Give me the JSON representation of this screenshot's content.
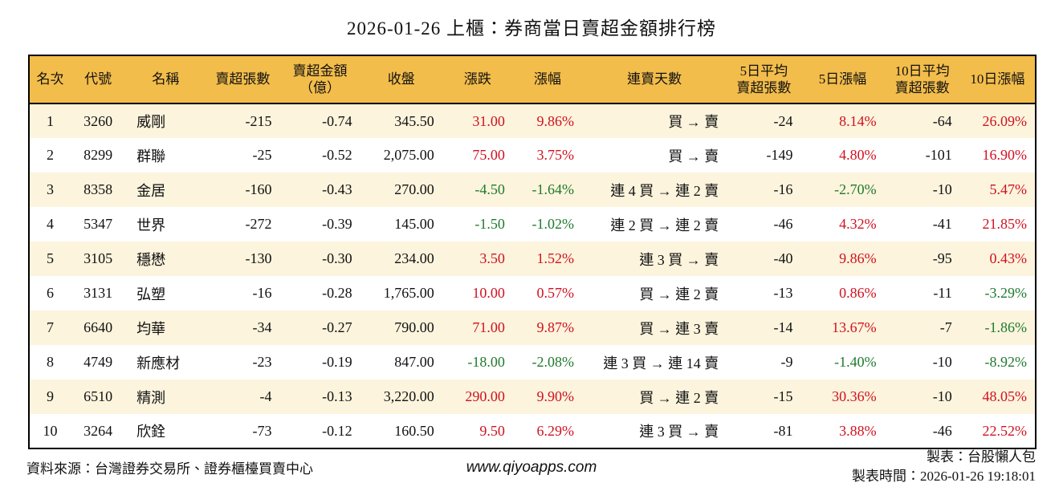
{
  "title": "2026-01-26 上櫃：券商當日賣超金額排行榜",
  "colors": {
    "header_bg": "#F3BD4B",
    "stripe_bg": "#FCF4DD",
    "up_red": "#D01120",
    "down_green": "#1F7A2D",
    "border": "#000000"
  },
  "table": {
    "headers": [
      "名次",
      "代號",
      "名稱",
      "賣超張數",
      "賣超金額\n（億）",
      "收盤",
      "漲跌",
      "漲幅",
      "連賣天數",
      "5日平均\n賣超張數",
      "5日漲幅",
      "10日平均\n賣超張數",
      "10日漲幅"
    ],
    "rows": [
      {
        "cells": [
          "1",
          "3260",
          "威剛",
          "-215",
          "-0.74",
          "345.50",
          "31.00",
          "9.86%",
          "買 → 賣",
          "-24",
          "8.14%",
          "-64",
          "26.09%"
        ],
        "tones": [
          "k",
          "k",
          "k",
          "k",
          "k",
          "k",
          "r",
          "r",
          "k",
          "k",
          "r",
          "k",
          "r"
        ]
      },
      {
        "cells": [
          "2",
          "8299",
          "群聯",
          "-25",
          "-0.52",
          "2,075.00",
          "75.00",
          "3.75%",
          "買 → 賣",
          "-149",
          "4.80%",
          "-101",
          "16.90%"
        ],
        "tones": [
          "k",
          "k",
          "k",
          "k",
          "k",
          "k",
          "r",
          "r",
          "k",
          "k",
          "r",
          "k",
          "r"
        ]
      },
      {
        "cells": [
          "3",
          "8358",
          "金居",
          "-160",
          "-0.43",
          "270.00",
          "-4.50",
          "-1.64%",
          "連 4 買 → 連 2 賣",
          "-16",
          "-2.70%",
          "-10",
          "5.47%"
        ],
        "tones": [
          "k",
          "k",
          "k",
          "k",
          "k",
          "k",
          "g",
          "g",
          "k",
          "k",
          "g",
          "k",
          "r"
        ]
      },
      {
        "cells": [
          "4",
          "5347",
          "世界",
          "-272",
          "-0.39",
          "145.00",
          "-1.50",
          "-1.02%",
          "連 2 買 → 連 2 賣",
          "-46",
          "4.32%",
          "-41",
          "21.85%"
        ],
        "tones": [
          "k",
          "k",
          "k",
          "k",
          "k",
          "k",
          "g",
          "g",
          "k",
          "k",
          "r",
          "k",
          "r"
        ]
      },
      {
        "cells": [
          "5",
          "3105",
          "穩懋",
          "-130",
          "-0.30",
          "234.00",
          "3.50",
          "1.52%",
          "連 3 買 → 賣",
          "-40",
          "9.86%",
          "-95",
          "0.43%"
        ],
        "tones": [
          "k",
          "k",
          "k",
          "k",
          "k",
          "k",
          "r",
          "r",
          "k",
          "k",
          "r",
          "k",
          "r"
        ]
      },
      {
        "cells": [
          "6",
          "3131",
          "弘塑",
          "-16",
          "-0.28",
          "1,765.00",
          "10.00",
          "0.57%",
          "買 → 連 2 賣",
          "-13",
          "0.86%",
          "-11",
          "-3.29%"
        ],
        "tones": [
          "k",
          "k",
          "k",
          "k",
          "k",
          "k",
          "r",
          "r",
          "k",
          "k",
          "r",
          "k",
          "g"
        ]
      },
      {
        "cells": [
          "7",
          "6640",
          "均華",
          "-34",
          "-0.27",
          "790.00",
          "71.00",
          "9.87%",
          "買 → 連 3 賣",
          "-14",
          "13.67%",
          "-7",
          "-1.86%"
        ],
        "tones": [
          "k",
          "k",
          "k",
          "k",
          "k",
          "k",
          "r",
          "r",
          "k",
          "k",
          "r",
          "k",
          "g"
        ]
      },
      {
        "cells": [
          "8",
          "4749",
          "新應材",
          "-23",
          "-0.19",
          "847.00",
          "-18.00",
          "-2.08%",
          "連 3 買 → 連 14 賣",
          "-9",
          "-1.40%",
          "-10",
          "-8.92%"
        ],
        "tones": [
          "k",
          "k",
          "k",
          "k",
          "k",
          "k",
          "g",
          "g",
          "k",
          "k",
          "g",
          "k",
          "g"
        ]
      },
      {
        "cells": [
          "9",
          "6510",
          "精測",
          "-4",
          "-0.13",
          "3,220.00",
          "290.00",
          "9.90%",
          "買 → 連 2 賣",
          "-15",
          "30.36%",
          "-10",
          "48.05%"
        ],
        "tones": [
          "k",
          "k",
          "k",
          "k",
          "k",
          "k",
          "r",
          "r",
          "k",
          "k",
          "r",
          "k",
          "r"
        ]
      },
      {
        "cells": [
          "10",
          "3264",
          "欣銓",
          "-73",
          "-0.12",
          "160.50",
          "9.50",
          "6.29%",
          "連 3 買 → 賣",
          "-81",
          "3.88%",
          "-46",
          "22.52%"
        ],
        "tones": [
          "k",
          "k",
          "k",
          "k",
          "k",
          "k",
          "r",
          "r",
          "k",
          "k",
          "r",
          "k",
          "r"
        ]
      }
    ]
  },
  "footer": {
    "source": "資料來源：台灣證券交易所、證券櫃檯買賣中心",
    "website": "www.qiyoapps.com",
    "author": "製表：台股懶人包",
    "generated": "製表時間：2026-01-26 19:18:01"
  }
}
